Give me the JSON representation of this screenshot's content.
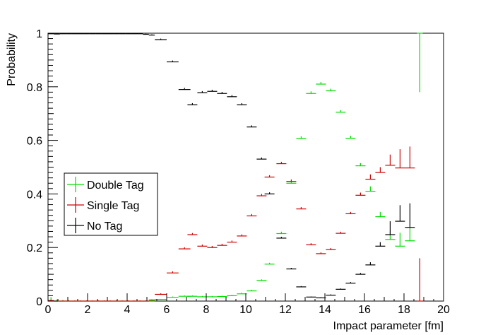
{
  "chart_data": {
    "type": "scatter",
    "title": "",
    "xlabel": "Impact parameter [fm]",
    "ylabel": "Probability",
    "xlim": [
      0,
      20
    ],
    "ylim": [
      0,
      1.0
    ],
    "x_ticks": [
      "0",
      "2",
      "4",
      "6",
      "8",
      "10",
      "12",
      "14",
      "16",
      "18",
      "20"
    ],
    "y_ticks": [
      "0",
      "0.2",
      "0.4",
      "0.6",
      "0.8",
      "1"
    ],
    "grid": false,
    "legend_position": "left",
    "series": [
      {
        "name": "Double Tag",
        "color": "#00dd00",
        "points": [
          [
            0.15,
            0.0,
            0.0,
            0.015
          ],
          [
            0.45,
            0.0,
            0.0,
            0.006
          ],
          [
            0.75,
            0.0,
            0.0,
            0.004
          ],
          [
            1.05,
            0.0,
            0.0,
            0.003
          ],
          [
            1.35,
            0.0,
            0.0,
            0.002
          ],
          [
            1.65,
            0.0,
            0.0,
            0.002
          ],
          [
            1.95,
            0.0,
            0.0,
            0.002
          ],
          [
            2.25,
            0.0,
            0.0,
            0.002
          ],
          [
            2.55,
            0.0,
            0.0,
            0.002
          ],
          [
            2.85,
            0.0,
            0.0,
            0.002
          ],
          [
            3.15,
            0.0,
            0.0,
            0.002
          ],
          [
            3.45,
            0.0,
            0.0,
            0.002
          ],
          [
            3.75,
            0.0,
            0.0,
            0.002
          ],
          [
            4.05,
            0.0,
            0.0,
            0.002
          ],
          [
            4.35,
            0.0,
            0.0,
            0.002
          ],
          [
            4.65,
            0.0,
            0.0,
            0.002
          ],
          [
            4.95,
            0.0,
            0.0,
            0.002
          ],
          [
            5.25,
            0.001,
            0.0,
            0.002
          ],
          [
            5.7,
            0.006,
            0.0,
            0.002
          ],
          [
            6.3,
            0.014,
            0.0,
            0.003
          ],
          [
            6.9,
            0.018,
            0.0,
            0.003
          ],
          [
            7.3,
            0.018,
            0.0,
            0.003
          ],
          [
            7.8,
            0.016,
            0.0,
            0.003
          ],
          [
            8.3,
            0.016,
            0.0,
            0.003
          ],
          [
            8.8,
            0.017,
            0.0,
            0.003
          ],
          [
            9.3,
            0.02,
            0.0,
            0.003
          ],
          [
            9.8,
            0.027,
            0.0,
            0.004
          ],
          [
            10.3,
            0.038,
            0.0,
            0.004
          ],
          [
            10.8,
            0.077,
            0.0,
            0.004
          ],
          [
            11.2,
            0.138,
            0.0,
            0.005
          ],
          [
            11.8,
            0.252,
            0.0,
            0.007
          ],
          [
            12.3,
            0.44,
            0.0,
            0.008
          ],
          [
            12.8,
            0.607,
            0.0,
            0.008
          ],
          [
            13.3,
            0.775,
            0.0,
            0.008
          ],
          [
            13.8,
            0.81,
            0.0,
            0.008
          ],
          [
            14.3,
            0.785,
            0.0,
            0.008
          ],
          [
            14.8,
            0.705,
            0.0,
            0.008
          ],
          [
            15.3,
            0.608,
            0.0,
            0.009
          ],
          [
            15.8,
            0.505,
            0.0,
            0.01
          ],
          [
            16.3,
            0.41,
            0.0,
            0.018
          ],
          [
            16.8,
            0.315,
            0.0,
            0.018
          ],
          [
            17.3,
            0.23,
            0.0,
            0.03
          ],
          [
            17.8,
            0.205,
            0.0,
            0.05
          ],
          [
            18.3,
            0.225,
            0.0,
            0.05
          ],
          [
            18.8,
            1.0,
            0.22,
            0.85
          ]
        ]
      },
      {
        "name": "Single Tag",
        "color": "#cc0000",
        "points": [
          [
            0.15,
            0.002,
            0.0,
            0.003
          ],
          [
            0.45,
            0.0,
            0.0,
            0.002
          ],
          [
            0.75,
            0.0,
            0.0,
            0.002
          ],
          [
            1.05,
            0.0,
            0.0,
            0.002
          ],
          [
            1.35,
            0.0,
            0.0,
            0.002
          ],
          [
            1.65,
            0.0,
            0.0,
            0.002
          ],
          [
            1.95,
            0.0,
            0.0,
            0.002
          ],
          [
            2.25,
            0.0,
            0.0,
            0.002
          ],
          [
            2.55,
            0.0,
            0.0,
            0.002
          ],
          [
            2.85,
            0.0,
            0.0,
            0.002
          ],
          [
            3.15,
            0.0,
            0.0,
            0.002
          ],
          [
            3.45,
            0.0,
            0.0,
            0.002
          ],
          [
            3.75,
            0.0,
            0.0,
            0.002
          ],
          [
            4.05,
            0.0,
            0.0,
            0.002
          ],
          [
            4.35,
            0.0,
            0.0,
            0.002
          ],
          [
            4.65,
            0.0,
            0.0,
            0.002
          ],
          [
            4.95,
            0.0,
            0.0,
            0.002
          ],
          [
            5.25,
            0.004,
            0.0,
            0.002
          ],
          [
            5.7,
            0.025,
            0.0,
            0.004
          ],
          [
            6.3,
            0.105,
            0.0,
            0.006
          ],
          [
            6.9,
            0.195,
            0.0,
            0.006
          ],
          [
            7.3,
            0.248,
            0.0,
            0.006
          ],
          [
            7.8,
            0.205,
            0.0,
            0.006
          ],
          [
            8.3,
            0.2,
            0.0,
            0.006
          ],
          [
            8.8,
            0.208,
            0.0,
            0.006
          ],
          [
            9.3,
            0.22,
            0.0,
            0.006
          ],
          [
            9.8,
            0.243,
            0.0,
            0.006
          ],
          [
            10.3,
            0.318,
            0.0,
            0.007
          ],
          [
            10.8,
            0.393,
            0.0,
            0.007
          ],
          [
            11.2,
            0.463,
            0.0,
            0.007
          ],
          [
            11.8,
            0.513,
            0.0,
            0.007
          ],
          [
            12.3,
            0.447,
            0.0,
            0.007
          ],
          [
            12.8,
            0.344,
            0.0,
            0.007
          ],
          [
            13.3,
            0.21,
            0.0,
            0.006
          ],
          [
            13.8,
            0.177,
            0.0,
            0.005
          ],
          [
            14.3,
            0.192,
            0.0,
            0.006
          ],
          [
            14.8,
            0.253,
            0.0,
            0.006
          ],
          [
            15.3,
            0.326,
            0.0,
            0.007
          ],
          [
            15.8,
            0.395,
            0.0,
            0.01
          ],
          [
            16.3,
            0.455,
            0.0,
            0.018
          ],
          [
            16.8,
            0.48,
            0.0,
            0.02
          ],
          [
            17.3,
            0.507,
            0.0,
            0.04
          ],
          [
            17.8,
            0.497,
            0.0,
            0.07
          ],
          [
            18.3,
            0.497,
            0.0,
            0.08
          ],
          [
            18.8,
            0.0,
            0.6,
            0.16
          ]
        ]
      },
      {
        "name": "No Tag",
        "color": "#000000",
        "points": [
          [
            0.15,
            0.998,
            0.0,
            0.02
          ],
          [
            0.45,
            0.997,
            0.0,
            0.005
          ],
          [
            0.75,
            0.998,
            0.0,
            0.004
          ],
          [
            1.05,
            0.998,
            0.0,
            0.003
          ],
          [
            1.35,
            0.998,
            0.0,
            0.003
          ],
          [
            1.65,
            0.998,
            0.0,
            0.002
          ],
          [
            1.95,
            0.998,
            0.0,
            0.002
          ],
          [
            2.25,
            0.998,
            0.0,
            0.002
          ],
          [
            2.55,
            0.998,
            0.0,
            0.002
          ],
          [
            2.85,
            0.998,
            0.0,
            0.002
          ],
          [
            3.15,
            0.998,
            0.0,
            0.002
          ],
          [
            3.45,
            0.998,
            0.0,
            0.002
          ],
          [
            3.75,
            0.998,
            0.0,
            0.002
          ],
          [
            4.05,
            0.998,
            0.0,
            0.002
          ],
          [
            4.35,
            0.998,
            0.0,
            0.002
          ],
          [
            4.65,
            0.998,
            0.0,
            0.002
          ],
          [
            4.95,
            0.996,
            0.0,
            0.002
          ],
          [
            5.25,
            0.993,
            0.0,
            0.003
          ],
          [
            5.7,
            0.976,
            0.0,
            0.004
          ],
          [
            6.3,
            0.893,
            0.0,
            0.005
          ],
          [
            6.9,
            0.79,
            0.0,
            0.006
          ],
          [
            7.3,
            0.733,
            0.0,
            0.006
          ],
          [
            7.8,
            0.778,
            0.0,
            0.006
          ],
          [
            8.3,
            0.783,
            0.0,
            0.006
          ],
          [
            8.8,
            0.775,
            0.0,
            0.006
          ],
          [
            9.3,
            0.763,
            0.0,
            0.006
          ],
          [
            9.8,
            0.733,
            0.0,
            0.006
          ],
          [
            10.3,
            0.65,
            0.0,
            0.006
          ],
          [
            10.8,
            0.53,
            0.0,
            0.006
          ],
          [
            11.2,
            0.4,
            0.0,
            0.006
          ],
          [
            11.8,
            0.235,
            0.0,
            0.005
          ],
          [
            12.3,
            0.12,
            0.0,
            0.004
          ],
          [
            12.8,
            0.053,
            0.0,
            0.003
          ],
          [
            13.3,
            0.015,
            0.0,
            0.002
          ],
          [
            13.8,
            0.012,
            0.0,
            0.002
          ],
          [
            14.3,
            0.022,
            0.0,
            0.003
          ],
          [
            14.8,
            0.044,
            0.0,
            0.003
          ],
          [
            15.3,
            0.067,
            0.0,
            0.004
          ],
          [
            15.8,
            0.1,
            0.0,
            0.005
          ],
          [
            16.3,
            0.135,
            0.0,
            0.01
          ],
          [
            16.8,
            0.205,
            0.0,
            0.015
          ],
          [
            17.3,
            0.248,
            0.0,
            0.05
          ],
          [
            17.8,
            0.298,
            0.0,
            0.06
          ],
          [
            18.3,
            0.275,
            0.0,
            0.09
          ],
          [
            18.8,
            0.0,
            0.0,
            0.0
          ]
        ]
      }
    ]
  }
}
